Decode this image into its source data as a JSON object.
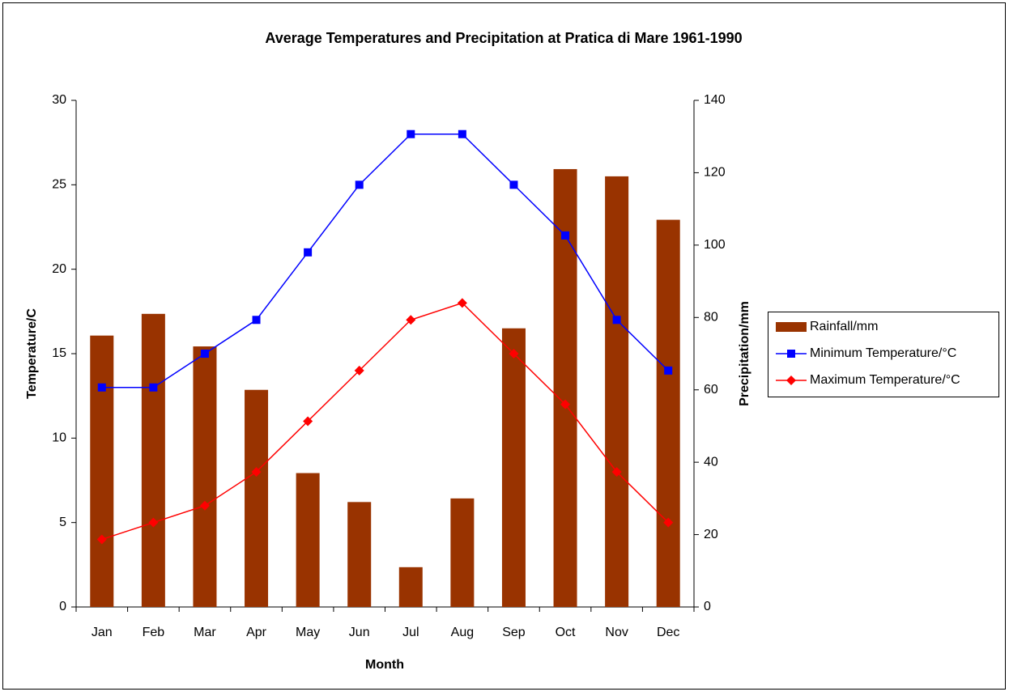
{
  "chart_data": {
    "type": "bar-line",
    "title": "Average Temperatures and Precipitation at Pratica di Mare 1961-1990",
    "xlabel": "Month",
    "ylabel": "Temperature/C",
    "y2label": "Precipitation/mm",
    "categories": [
      "Jan",
      "Feb",
      "Mar",
      "Apr",
      "May",
      "Jun",
      "Jul",
      "Aug",
      "Sep",
      "Oct",
      "Nov",
      "Dec"
    ],
    "series": [
      {
        "name": "Rainfall/mm",
        "type": "bar",
        "axis": "y2",
        "color": "#993300",
        "values": [
          75,
          81,
          72,
          60,
          37,
          29,
          11,
          30,
          77,
          121,
          119,
          107
        ]
      },
      {
        "name": "Minimum Temperature/°C",
        "type": "line",
        "marker": "square",
        "color": "#0000ff",
        "values": [
          13,
          13,
          15,
          17,
          21,
          25,
          28,
          28,
          25,
          22,
          17,
          14
        ]
      },
      {
        "name": "Maximum Temperature/°C",
        "type": "line",
        "marker": "diamond",
        "color": "#ff0000",
        "values": [
          4,
          5,
          6,
          8,
          11,
          14,
          17,
          18,
          15,
          12,
          8,
          5
        ]
      }
    ],
    "ylim": [
      0,
      30
    ],
    "yticks": [
      0,
      5,
      10,
      15,
      20,
      25,
      30
    ],
    "y2lim": [
      0,
      140
    ],
    "y2ticks": [
      0,
      20,
      40,
      60,
      80,
      100,
      120,
      140
    ],
    "legend": "right"
  }
}
